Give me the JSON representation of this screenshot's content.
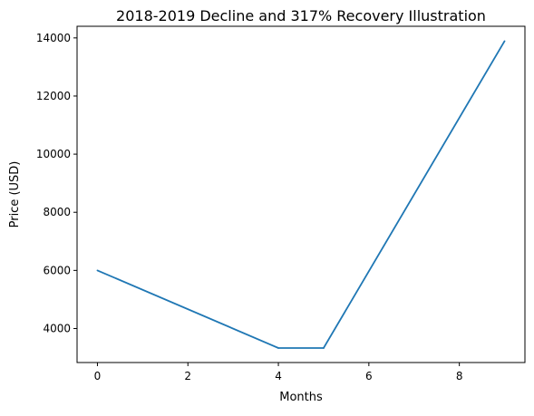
{
  "chart_data": {
    "type": "line",
    "title": "2018-2019 Decline and 317% Recovery Illustration",
    "xlabel": "Months",
    "ylabel": "Price (USD)",
    "xlim": [
      -0.45,
      9.45
    ],
    "ylim": [
      2830,
      14400
    ],
    "x_ticks": [
      0,
      2,
      4,
      6,
      8
    ],
    "y_ticks": [
      4000,
      6000,
      8000,
      10000,
      12000,
      14000
    ],
    "grid": false,
    "series": [
      {
        "color": "#1f77b4",
        "x": [
          0,
          4,
          5,
          9
        ],
        "y": [
          6000,
          3330,
          3330,
          13890
        ]
      }
    ]
  }
}
